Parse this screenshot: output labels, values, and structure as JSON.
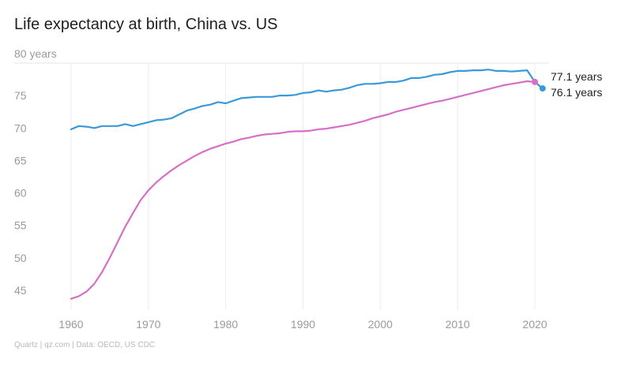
{
  "title": "Life expectancy at birth, China vs. US",
  "source": "Quartz | qz.com | Data: OECD, US CDC",
  "chart_data": {
    "type": "line",
    "title": "Life expectancy at birth, China vs. US",
    "ylim": [
      43,
      80
    ],
    "xlim": [
      1960,
      2021
    ],
    "y_ticks": [
      {
        "value": 80,
        "label": "80 years"
      },
      {
        "value": 75,
        "label": "75"
      },
      {
        "value": 70,
        "label": "70"
      },
      {
        "value": 65,
        "label": "65"
      },
      {
        "value": 60,
        "label": "60"
      },
      {
        "value": 55,
        "label": "55"
      },
      {
        "value": 50,
        "label": "50"
      },
      {
        "value": 45,
        "label": "45"
      }
    ],
    "x_ticks": [
      {
        "value": 1960,
        "label": "1960"
      },
      {
        "value": 1970,
        "label": "1970"
      },
      {
        "value": 1980,
        "label": "1980"
      },
      {
        "value": 1990,
        "label": "1990"
      },
      {
        "value": 2000,
        "label": "2000"
      },
      {
        "value": 2010,
        "label": "2010"
      },
      {
        "value": 2020,
        "label": "2020"
      }
    ],
    "grid": "vertical",
    "series": [
      {
        "color": "#3a9ad9",
        "end_label": "76.1 years",
        "x": [
          1960,
          1961,
          1962,
          1963,
          1964,
          1965,
          1966,
          1967,
          1968,
          1969,
          1970,
          1971,
          1972,
          1973,
          1974,
          1975,
          1976,
          1977,
          1978,
          1979,
          1980,
          1981,
          1982,
          1983,
          1984,
          1985,
          1986,
          1987,
          1988,
          1989,
          1990,
          1991,
          1992,
          1993,
          1994,
          1995,
          1996,
          1997,
          1998,
          1999,
          2000,
          2001,
          2002,
          2003,
          2004,
          2005,
          2006,
          2007,
          2008,
          2009,
          2010,
          2011,
          2012,
          2013,
          2014,
          2015,
          2016,
          2017,
          2018,
          2019,
          2020,
          2021
        ],
        "values": [
          69.8,
          70.3,
          70.2,
          70.0,
          70.3,
          70.3,
          70.3,
          70.6,
          70.3,
          70.6,
          70.9,
          71.2,
          71.3,
          71.5,
          72.1,
          72.7,
          73.0,
          73.4,
          73.6,
          74.0,
          73.8,
          74.2,
          74.6,
          74.7,
          74.8,
          74.8,
          74.8,
          75.0,
          75.0,
          75.1,
          75.4,
          75.5,
          75.8,
          75.6,
          75.8,
          75.9,
          76.2,
          76.6,
          76.8,
          76.8,
          76.9,
          77.1,
          77.1,
          77.3,
          77.7,
          77.7,
          77.9,
          78.2,
          78.3,
          78.6,
          78.8,
          78.8,
          78.9,
          78.9,
          79.0,
          78.8,
          78.8,
          78.7,
          78.8,
          78.9,
          77.1,
          76.1
        ]
      },
      {
        "color": "#d66fc6",
        "end_label": "77.1 years",
        "x": [
          1960,
          1961,
          1962,
          1963,
          1964,
          1965,
          1966,
          1967,
          1968,
          1969,
          1970,
          1971,
          1972,
          1973,
          1974,
          1975,
          1976,
          1977,
          1978,
          1979,
          1980,
          1981,
          1982,
          1983,
          1984,
          1985,
          1986,
          1987,
          1988,
          1989,
          1990,
          1991,
          1992,
          1993,
          1994,
          1995,
          1996,
          1997,
          1998,
          1999,
          2000,
          2001,
          2002,
          2003,
          2004,
          2005,
          2006,
          2007,
          2008,
          2009,
          2010,
          2011,
          2012,
          2013,
          2014,
          2015,
          2016,
          2017,
          2018,
          2019,
          2020
        ],
        "values": [
          43.7,
          44.1,
          44.8,
          46.0,
          47.8,
          50.0,
          52.4,
          54.8,
          56.9,
          58.9,
          60.4,
          61.6,
          62.6,
          63.5,
          64.3,
          65.0,
          65.7,
          66.3,
          66.8,
          67.2,
          67.6,
          67.9,
          68.3,
          68.5,
          68.8,
          69.0,
          69.1,
          69.2,
          69.4,
          69.5,
          69.5,
          69.6,
          69.8,
          69.9,
          70.1,
          70.3,
          70.5,
          70.8,
          71.1,
          71.5,
          71.8,
          72.1,
          72.5,
          72.8,
          73.1,
          73.4,
          73.7,
          74.0,
          74.2,
          74.5,
          74.8,
          75.1,
          75.4,
          75.7,
          76.0,
          76.3,
          76.6,
          76.8,
          77.0,
          77.2,
          77.1
        ]
      }
    ]
  }
}
